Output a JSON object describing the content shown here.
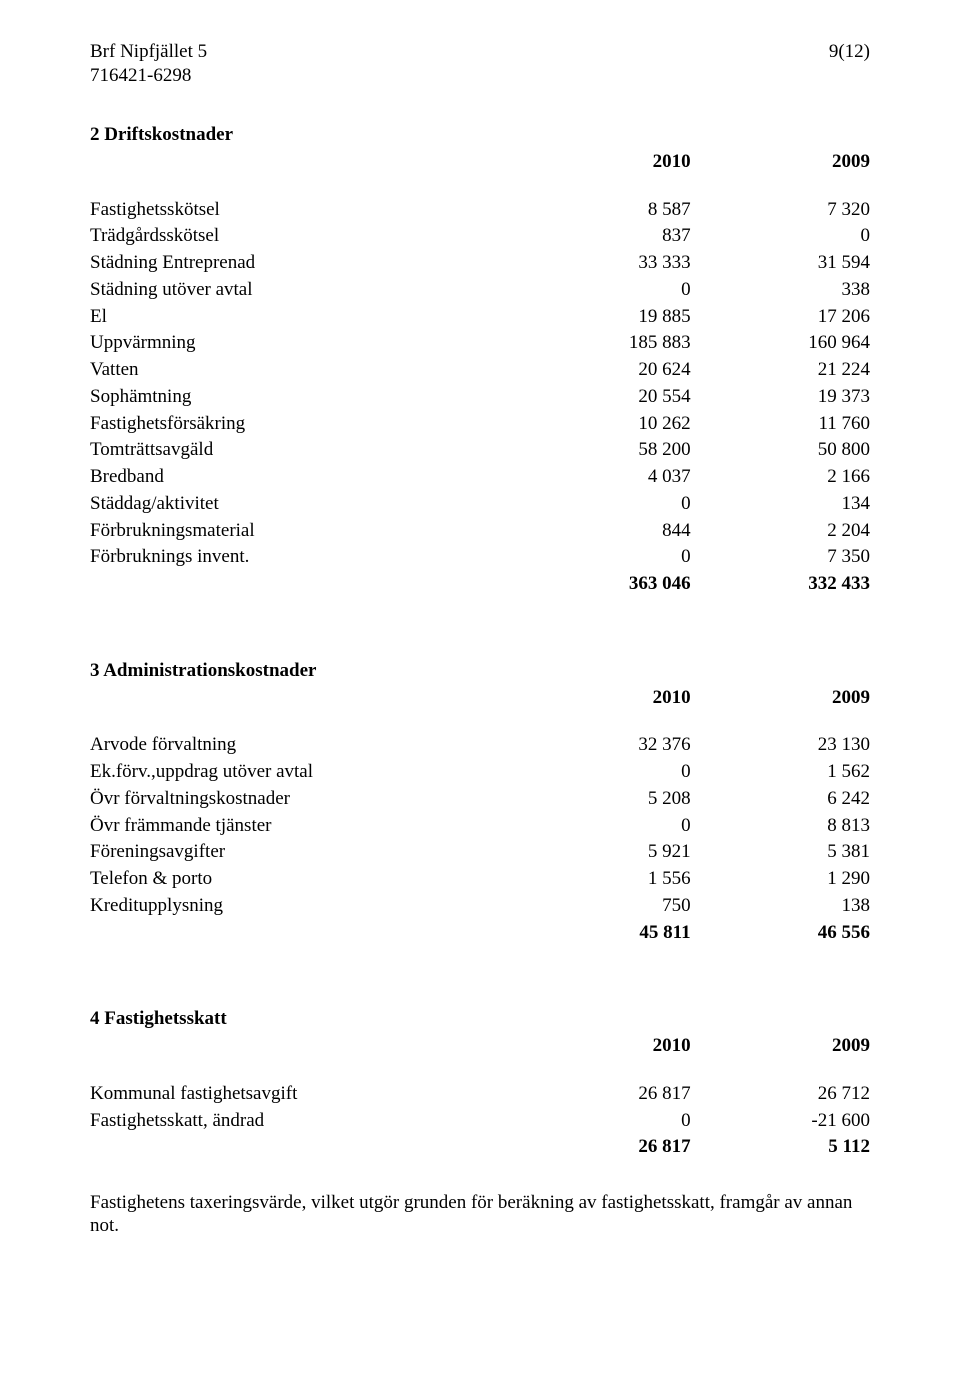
{
  "header": {
    "org_name": "Brf Nipfjället 5",
    "org_number": "716421-6298",
    "page_label": "9(12)"
  },
  "sections": {
    "drift": {
      "heading": "2 Driftskostnader",
      "year1": "2010",
      "year2": "2009",
      "rows": [
        {
          "label": "Fastighetsskötsel",
          "a": "8 587",
          "b": "7 320"
        },
        {
          "label": "Trädgårdsskötsel",
          "a": "837",
          "b": "0"
        },
        {
          "label": "Städning Entreprenad",
          "a": "33 333",
          "b": "31 594"
        },
        {
          "label": "Städning utöver avtal",
          "a": "0",
          "b": "338"
        },
        {
          "label": "El",
          "a": "19 885",
          "b": "17 206"
        },
        {
          "label": "Uppvärmning",
          "a": "185 883",
          "b": "160 964"
        },
        {
          "label": "Vatten",
          "a": "20 624",
          "b": "21 224"
        },
        {
          "label": "Sophämtning",
          "a": "20 554",
          "b": "19 373"
        },
        {
          "label": "Fastighetsförsäkring",
          "a": "10 262",
          "b": "11 760"
        },
        {
          "label": "Tomträttsavgäld",
          "a": "58 200",
          "b": "50 800"
        },
        {
          "label": "Bredband",
          "a": "4 037",
          "b": "2 166"
        },
        {
          "label": "Städdag/aktivitet",
          "a": "0",
          "b": "134"
        },
        {
          "label": "Förbrukningsmaterial",
          "a": "844",
          "b": "2 204"
        },
        {
          "label": "Förbruknings invent.",
          "a": "0",
          "b": "7 350"
        }
      ],
      "total": {
        "a": "363 046",
        "b": "332 433"
      }
    },
    "admin": {
      "heading": "3 Administrationskostnader",
      "year1": "2010",
      "year2": "2009",
      "rows": [
        {
          "label": "Arvode förvaltning",
          "a": "32 376",
          "b": "23 130"
        },
        {
          "label": "Ek.förv.,uppdrag utöver avtal",
          "a": "0",
          "b": "1 562"
        },
        {
          "label": "Övr förvaltningskostnader",
          "a": "5 208",
          "b": "6 242"
        },
        {
          "label": "Övr främmande tjänster",
          "a": "0",
          "b": "8 813"
        },
        {
          "label": "Föreningsavgifter",
          "a": "5 921",
          "b": "5 381"
        },
        {
          "label": "Telefon & porto",
          "a": "1 556",
          "b": "1 290"
        },
        {
          "label": "Kreditupplysning",
          "a": "750",
          "b": "138"
        }
      ],
      "total": {
        "a": "45 811",
        "b": "46 556"
      }
    },
    "tax": {
      "heading": "4 Fastighetsskatt",
      "year1": "2010",
      "year2": "2009",
      "rows": [
        {
          "label": "Kommunal fastighetsavgift",
          "a": "26 817",
          "b": "26 712"
        },
        {
          "label": "Fastighetsskatt, ändrad",
          "a": "0",
          "b": "-21 600"
        }
      ],
      "total": {
        "a": "26 817",
        "b": "5 112"
      },
      "footnote": "Fastighetens taxeringsvärde, vilket utgör grunden för beräkning av fastighetsskatt, framgår av annan not."
    }
  }
}
